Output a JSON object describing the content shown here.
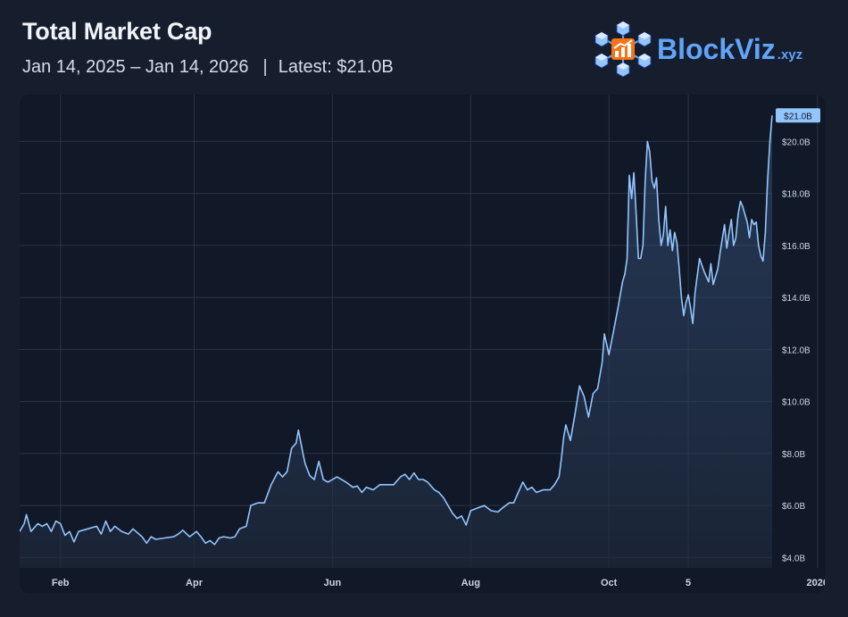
{
  "header": {
    "title": "Total Market Cap",
    "date_range": "Jan 14, 2025 – Jan 14, 2026",
    "separator": "|",
    "latest": "Latest: $21.0B"
  },
  "brand": {
    "name": "BlockViz",
    "tld": ".xyz",
    "logo_icon": "blockchain-cubes-chart-icon"
  },
  "colors": {
    "background": "#161e2e",
    "panel": "#111827",
    "line": "#93c5fd",
    "brand_blue": "#60a5fa",
    "brand_orange": "#f97316",
    "grid": "#2a3447"
  },
  "chart_data": {
    "type": "area",
    "title": "Total Market Cap",
    "xlabel": "",
    "ylabel": "",
    "unit": "USD billions",
    "ylim": [
      3.6,
      21.8
    ],
    "y_ticks": [
      {
        "value": 4,
        "label": "$4.0B"
      },
      {
        "value": 6,
        "label": "$6.0B"
      },
      {
        "value": 8,
        "label": "$8.0B"
      },
      {
        "value": 10,
        "label": "$10.0B"
      },
      {
        "value": 12,
        "label": "$12.0B"
      },
      {
        "value": 14,
        "label": "$14.0B"
      },
      {
        "value": 16,
        "label": "$16.0B"
      },
      {
        "value": 18,
        "label": "$18.0B"
      },
      {
        "value": 20,
        "label": "$20.0B"
      }
    ],
    "x_ticks": [
      {
        "day": 18,
        "label": "Feb"
      },
      {
        "day": 77,
        "label": "Apr"
      },
      {
        "day": 138,
        "label": "Jun"
      },
      {
        "day": 199,
        "label": "Aug"
      },
      {
        "day": 260,
        "label": "Oct"
      },
      {
        "day": 295,
        "label": "5"
      },
      {
        "day": 352,
        "label": "2026"
      }
    ],
    "last_value_label": "$21.0B",
    "series": [
      {
        "name": "Total Market Cap",
        "x_unit": "days since Jan 14, 2025",
        "points": [
          [
            0,
            5.0
          ],
          [
            2,
            5.3
          ],
          [
            3,
            5.65
          ],
          [
            5,
            5.0
          ],
          [
            8,
            5.3
          ],
          [
            10,
            5.2
          ],
          [
            12,
            5.3
          ],
          [
            14,
            5.0
          ],
          [
            16,
            5.4
          ],
          [
            18,
            5.3
          ],
          [
            20,
            4.85
          ],
          [
            22,
            5.0
          ],
          [
            24,
            4.6
          ],
          [
            26,
            5.0
          ],
          [
            30,
            5.1
          ],
          [
            34,
            5.2
          ],
          [
            36,
            4.9
          ],
          [
            38,
            5.4
          ],
          [
            40,
            5.0
          ],
          [
            42,
            5.2
          ],
          [
            45,
            5.0
          ],
          [
            48,
            4.9
          ],
          [
            50,
            5.1
          ],
          [
            54,
            4.8
          ],
          [
            56,
            4.55
          ],
          [
            58,
            4.8
          ],
          [
            60,
            4.7
          ],
          [
            64,
            4.75
          ],
          [
            68,
            4.8
          ],
          [
            70,
            4.9
          ],
          [
            72,
            5.05
          ],
          [
            75,
            4.8
          ],
          [
            78,
            5.0
          ],
          [
            80,
            4.8
          ],
          [
            82,
            4.55
          ],
          [
            84,
            4.65
          ],
          [
            86,
            4.5
          ],
          [
            88,
            4.75
          ],
          [
            90,
            4.8
          ],
          [
            93,
            4.75
          ],
          [
            95,
            4.8
          ],
          [
            97,
            5.1
          ],
          [
            100,
            5.2
          ],
          [
            102,
            6.0
          ],
          [
            105,
            6.1
          ],
          [
            108,
            6.1
          ],
          [
            111,
            6.8
          ],
          [
            114,
            7.3
          ],
          [
            116,
            7.1
          ],
          [
            118,
            7.3
          ],
          [
            120,
            8.2
          ],
          [
            122,
            8.4
          ],
          [
            123,
            8.9
          ],
          [
            125,
            8.0
          ],
          [
            126,
            7.6
          ],
          [
            128,
            7.15
          ],
          [
            130,
            7.0
          ],
          [
            132,
            7.7
          ],
          [
            134,
            7.0
          ],
          [
            136,
            6.9
          ],
          [
            140,
            7.1
          ],
          [
            144,
            6.9
          ],
          [
            147,
            6.7
          ],
          [
            149,
            6.75
          ],
          [
            151,
            6.5
          ],
          [
            153,
            6.7
          ],
          [
            156,
            6.6
          ],
          [
            159,
            6.8
          ],
          [
            162,
            6.8
          ],
          [
            165,
            6.8
          ],
          [
            168,
            7.1
          ],
          [
            170,
            7.2
          ],
          [
            172,
            7.0
          ],
          [
            174,
            7.25
          ],
          [
            176,
            7.0
          ],
          [
            178,
            7.0
          ],
          [
            180,
            6.9
          ],
          [
            183,
            6.6
          ],
          [
            185,
            6.5
          ],
          [
            187,
            6.3
          ],
          [
            189,
            6.0
          ],
          [
            191,
            5.7
          ],
          [
            193,
            5.5
          ],
          [
            195,
            5.6
          ],
          [
            197,
            5.25
          ],
          [
            199,
            5.8
          ],
          [
            202,
            5.9
          ],
          [
            205,
            6.0
          ],
          [
            208,
            5.8
          ],
          [
            211,
            5.75
          ],
          [
            213,
            5.9
          ],
          [
            216,
            6.1
          ],
          [
            218,
            6.1
          ],
          [
            220,
            6.5
          ],
          [
            222,
            6.9
          ],
          [
            224,
            6.6
          ],
          [
            226,
            6.7
          ],
          [
            228,
            6.5
          ],
          [
            231,
            6.6
          ],
          [
            234,
            6.6
          ],
          [
            236,
            6.8
          ],
          [
            238,
            7.1
          ],
          [
            239,
            7.8
          ],
          [
            240,
            8.6
          ],
          [
            241,
            9.1
          ],
          [
            243,
            8.5
          ],
          [
            245,
            9.5
          ],
          [
            247,
            10.6
          ],
          [
            249,
            10.2
          ],
          [
            251,
            9.4
          ],
          [
            253,
            10.3
          ],
          [
            255,
            10.5
          ],
          [
            257,
            11.5
          ],
          [
            258,
            12.6
          ],
          [
            260,
            11.8
          ],
          [
            262,
            12.7
          ],
          [
            264,
            13.6
          ],
          [
            266,
            14.6
          ],
          [
            267,
            14.9
          ],
          [
            268,
            15.5
          ],
          [
            269,
            18.7
          ],
          [
            270,
            17.8
          ],
          [
            271,
            18.8
          ],
          [
            272,
            17.2
          ],
          [
            273,
            15.5
          ],
          [
            274,
            15.5
          ],
          [
            275,
            16.0
          ],
          [
            276,
            18.5
          ],
          [
            277,
            20.0
          ],
          [
            278,
            19.6
          ],
          [
            279,
            18.5
          ],
          [
            280,
            18.2
          ],
          [
            281,
            18.6
          ],
          [
            282,
            17.0
          ],
          [
            283,
            16.0
          ],
          [
            284,
            16.4
          ],
          [
            285,
            17.5
          ],
          [
            286,
            16.0
          ],
          [
            287,
            16.6
          ],
          [
            288,
            15.8
          ],
          [
            289,
            16.5
          ],
          [
            290,
            16.1
          ],
          [
            291,
            15.1
          ],
          [
            292,
            14.0
          ],
          [
            293,
            13.3
          ],
          [
            294,
            13.8
          ],
          [
            295,
            14.1
          ],
          [
            296,
            13.6
          ],
          [
            297,
            13.0
          ],
          [
            298,
            14.2
          ],
          [
            300,
            15.5
          ],
          [
            302,
            15.0
          ],
          [
            304,
            14.6
          ],
          [
            305,
            15.3
          ],
          [
            306,
            14.5
          ],
          [
            308,
            15.1
          ],
          [
            309,
            15.7
          ],
          [
            311,
            16.8
          ],
          [
            312,
            15.9
          ],
          [
            313,
            16.5
          ],
          [
            314,
            17.0
          ],
          [
            315,
            16.0
          ],
          [
            316,
            16.3
          ],
          [
            317,
            17.2
          ],
          [
            318,
            17.7
          ],
          [
            319,
            17.5
          ],
          [
            320,
            17.2
          ],
          [
            321,
            16.9
          ],
          [
            322,
            16.3
          ],
          [
            323,
            17.0
          ],
          [
            324,
            16.8
          ],
          [
            325,
            16.9
          ],
          [
            326,
            16.0
          ],
          [
            327,
            15.6
          ],
          [
            328,
            15.4
          ],
          [
            329,
            16.5
          ],
          [
            330,
            18.5
          ],
          [
            331,
            20.0
          ],
          [
            332,
            21.0
          ]
        ]
      }
    ]
  }
}
